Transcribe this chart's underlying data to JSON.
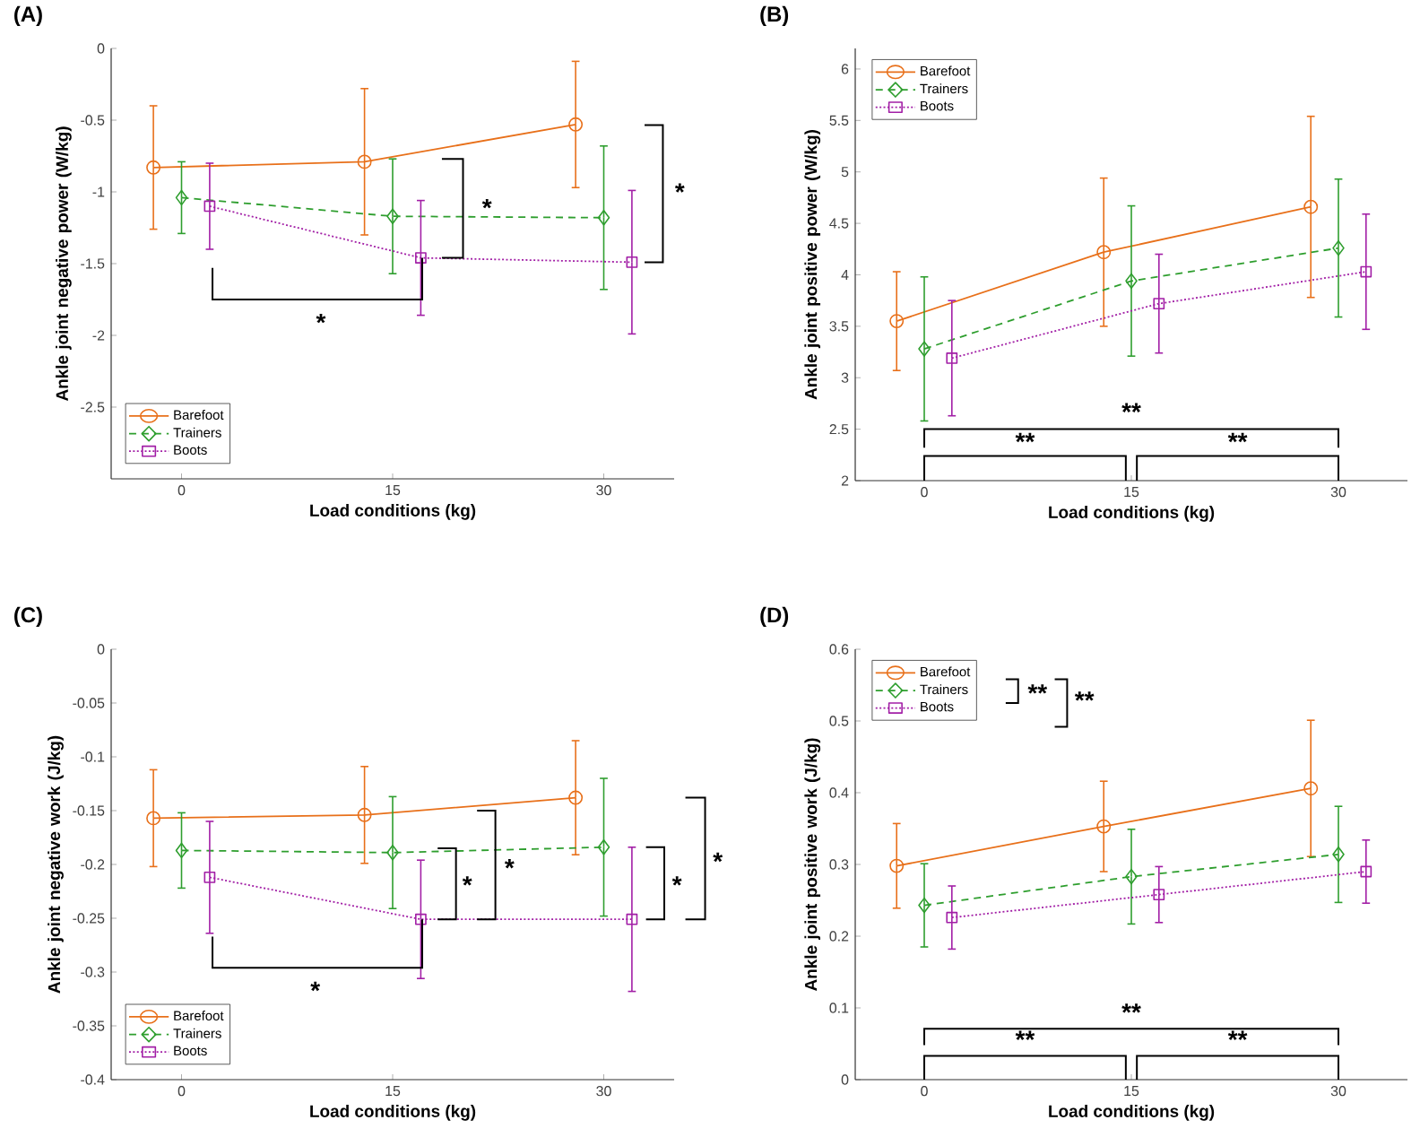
{
  "chart_data": [
    {
      "type": "line",
      "title": "(A)",
      "xlabel": "Load conditions (kg)",
      "ylabel": "Ankle joint negative power (W/kg)",
      "xlim": [
        -5,
        35
      ],
      "xticks": [
        0,
        15,
        30
      ],
      "ylim": [
        -3,
        0
      ],
      "yticks": [
        -2.5,
        -2,
        -1.5,
        -1,
        -0.5,
        0
      ],
      "legend": "bottom left",
      "series": [
        {
          "name": "Barefoot",
          "color": "#e8701a",
          "marker": "circle",
          "line_style": "solid",
          "x": [
            -2,
            13,
            28
          ],
          "values": [
            -0.83,
            -0.79,
            -0.53
          ],
          "errors": [
            0.43,
            0.51,
            0.44
          ]
        },
        {
          "name": "Trainers",
          "color": "#2e9e2e",
          "marker": "diamond",
          "line_style": "dashed",
          "x": [
            0,
            15,
            30
          ],
          "values": [
            -1.04,
            -1.17,
            -1.18
          ],
          "errors": [
            0.25,
            0.4,
            0.5
          ]
        },
        {
          "name": "Boots",
          "color": "#a21fa6",
          "marker": "square",
          "line_style": "dotted",
          "x": [
            2,
            17,
            32
          ],
          "values": [
            -1.1,
            -1.46,
            -1.49
          ],
          "errors": [
            0.3,
            0.4,
            0.5
          ]
        }
      ],
      "annotations": [
        "*",
        "*",
        "*"
      ]
    },
    {
      "type": "line",
      "title": "(B)",
      "xlabel": "Load conditions (kg)",
      "ylabel": "Ankle joint positive power (W/kg)",
      "xlim": [
        -5,
        35
      ],
      "xticks": [
        0,
        15,
        30
      ],
      "ylim": [
        2,
        6.2
      ],
      "yticks": [
        2,
        2.5,
        3,
        3.5,
        4,
        4.5,
        5,
        5.5,
        6
      ],
      "legend": "top left",
      "series": [
        {
          "name": "Barefoot",
          "color": "#e8701a",
          "marker": "circle",
          "line_style": "solid",
          "x": [
            -2,
            13,
            28
          ],
          "values": [
            3.55,
            4.22,
            4.66
          ],
          "errors": [
            0.48,
            0.72,
            0.88
          ]
        },
        {
          "name": "Trainers",
          "color": "#2e9e2e",
          "marker": "diamond",
          "line_style": "dashed",
          "x": [
            0,
            15,
            30
          ],
          "values": [
            3.28,
            3.94,
            4.26
          ],
          "errors": [
            0.7,
            0.73,
            0.67
          ]
        },
        {
          "name": "Boots",
          "color": "#a21fa6",
          "marker": "square",
          "line_style": "dotted",
          "x": [
            2,
            17,
            32
          ],
          "values": [
            3.19,
            3.72,
            4.03
          ],
          "errors": [
            0.56,
            0.48,
            0.56
          ]
        }
      ],
      "annotations": [
        "**",
        "**",
        "**"
      ]
    },
    {
      "type": "line",
      "title": "(C)",
      "xlabel": "Load conditions (kg)",
      "ylabel": "Ankle joint negative work (J/kg)",
      "xlim": [
        -5,
        35
      ],
      "xticks": [
        0,
        15,
        30
      ],
      "ylim": [
        -0.4,
        0
      ],
      "yticks": [
        -0.4,
        -0.35,
        -0.3,
        -0.25,
        -0.2,
        -0.15,
        -0.1,
        -0.05,
        0
      ],
      "legend": "bottom left",
      "series": [
        {
          "name": "Barefoot",
          "color": "#e8701a",
          "marker": "circle",
          "line_style": "solid",
          "x": [
            -2,
            13,
            28
          ],
          "values": [
            -0.157,
            -0.154,
            -0.138
          ],
          "errors": [
            0.045,
            0.045,
            0.053
          ]
        },
        {
          "name": "Trainers",
          "color": "#2e9e2e",
          "marker": "diamond",
          "line_style": "dashed",
          "x": [
            0,
            15,
            30
          ],
          "values": [
            -0.187,
            -0.189,
            -0.184
          ],
          "errors": [
            0.035,
            0.052,
            0.064
          ]
        },
        {
          "name": "Boots",
          "color": "#a21fa6",
          "marker": "square",
          "line_style": "dotted",
          "x": [
            2,
            17,
            32
          ],
          "values": [
            -0.212,
            -0.251,
            -0.251
          ],
          "errors": [
            0.052,
            0.055,
            0.067
          ]
        }
      ],
      "annotations": [
        "*",
        "*",
        "*",
        "*",
        "*"
      ]
    },
    {
      "type": "line",
      "title": "(D)",
      "xlabel": "Load conditions (kg)",
      "ylabel": "Ankle joint positive work (J/kg)",
      "xlim": [
        -5,
        35
      ],
      "xticks": [
        0,
        15,
        30
      ],
      "ylim": [
        0,
        0.6
      ],
      "yticks": [
        0,
        0.1,
        0.2,
        0.3,
        0.4,
        0.5,
        0.6
      ],
      "legend": "top left",
      "series": [
        {
          "name": "Barefoot",
          "color": "#e8701a",
          "marker": "circle",
          "line_style": "solid",
          "x": [
            -2,
            13,
            28
          ],
          "values": [
            0.298,
            0.353,
            0.406
          ],
          "errors": [
            0.059,
            0.063,
            0.095
          ]
        },
        {
          "name": "Trainers",
          "color": "#2e9e2e",
          "marker": "diamond",
          "line_style": "dashed",
          "x": [
            0,
            15,
            30
          ],
          "values": [
            0.243,
            0.283,
            0.314
          ],
          "errors": [
            0.058,
            0.066,
            0.067
          ]
        },
        {
          "name": "Boots",
          "color": "#a21fa6",
          "marker": "square",
          "line_style": "dotted",
          "x": [
            2,
            17,
            32
          ],
          "values": [
            0.226,
            0.258,
            0.29
          ],
          "errors": [
            0.044,
            0.039,
            0.044
          ]
        }
      ],
      "annotations": [
        "**",
        "**",
        "**",
        "**",
        "**"
      ]
    }
  ]
}
